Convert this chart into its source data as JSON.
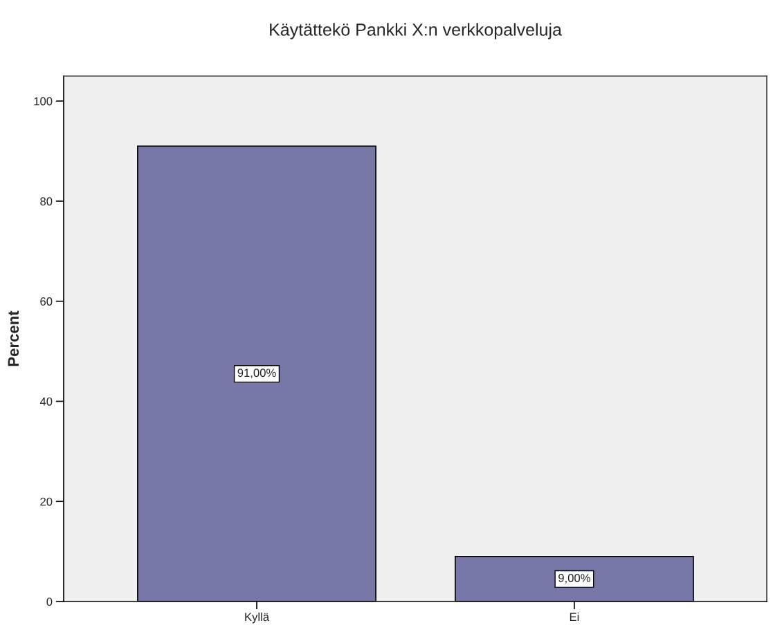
{
  "chart_data": {
    "type": "bar",
    "title": "Käytättekö Pankki X:n verkkopalveluja",
    "ylabel": "Percent",
    "categories": [
      "Kyllä",
      "Ei"
    ],
    "values": [
      91,
      9
    ],
    "value_labels": [
      "91,00%",
      "9,00%"
    ],
    "color": "#7878a8",
    "ylim": [
      0,
      105
    ],
    "yticks": [
      0,
      20,
      40,
      60,
      80,
      100
    ],
    "grid": false
  }
}
